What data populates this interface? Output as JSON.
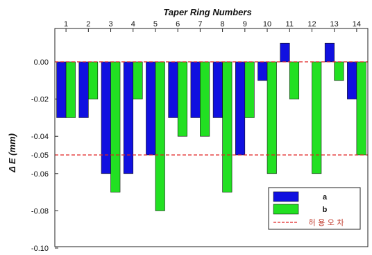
{
  "chart_data": {
    "type": "bar",
    "title": "Taper Ring  Numbers",
    "ylabel": "Δ E    (mm)",
    "xlabel": "",
    "categories": [
      "1",
      "2",
      "3",
      "4",
      "5",
      "6",
      "7",
      "8",
      "9",
      "10",
      "11",
      "12",
      "13",
      "14"
    ],
    "series": [
      {
        "name": "a",
        "color": "#1010e0",
        "values": [
          -0.03,
          -0.03,
          -0.06,
          -0.06,
          -0.05,
          -0.03,
          -0.03,
          -0.03,
          -0.05,
          -0.01,
          0.01,
          0.0,
          0.01,
          -0.02
        ]
      },
      {
        "name": "b",
        "color": "#22e022",
        "values": [
          -0.03,
          -0.02,
          -0.07,
          -0.02,
          -0.08,
          -0.04,
          -0.04,
          -0.07,
          -0.03,
          -0.06,
          -0.02,
          -0.06,
          -0.01,
          -0.05
        ]
      }
    ],
    "ylim": [
      -0.1,
      0.02
    ],
    "yticks": [
      "0.00",
      "-0.02",
      "-0.04",
      "-0.05",
      "-0.06",
      "-0.08",
      "-0.10"
    ],
    "ytick_values": [
      0.0,
      -0.02,
      -0.04,
      -0.05,
      -0.06,
      -0.08,
      -0.1
    ],
    "reference_lines": [
      {
        "label": "허 용 오 차",
        "value": -0.05,
        "color": "#e02020",
        "style": "dashed"
      },
      {
        "label": "",
        "value": 0.0,
        "color": "#e02020",
        "style": "dashed"
      }
    ],
    "legend": {
      "position": "bottom-right"
    },
    "grid": false
  }
}
